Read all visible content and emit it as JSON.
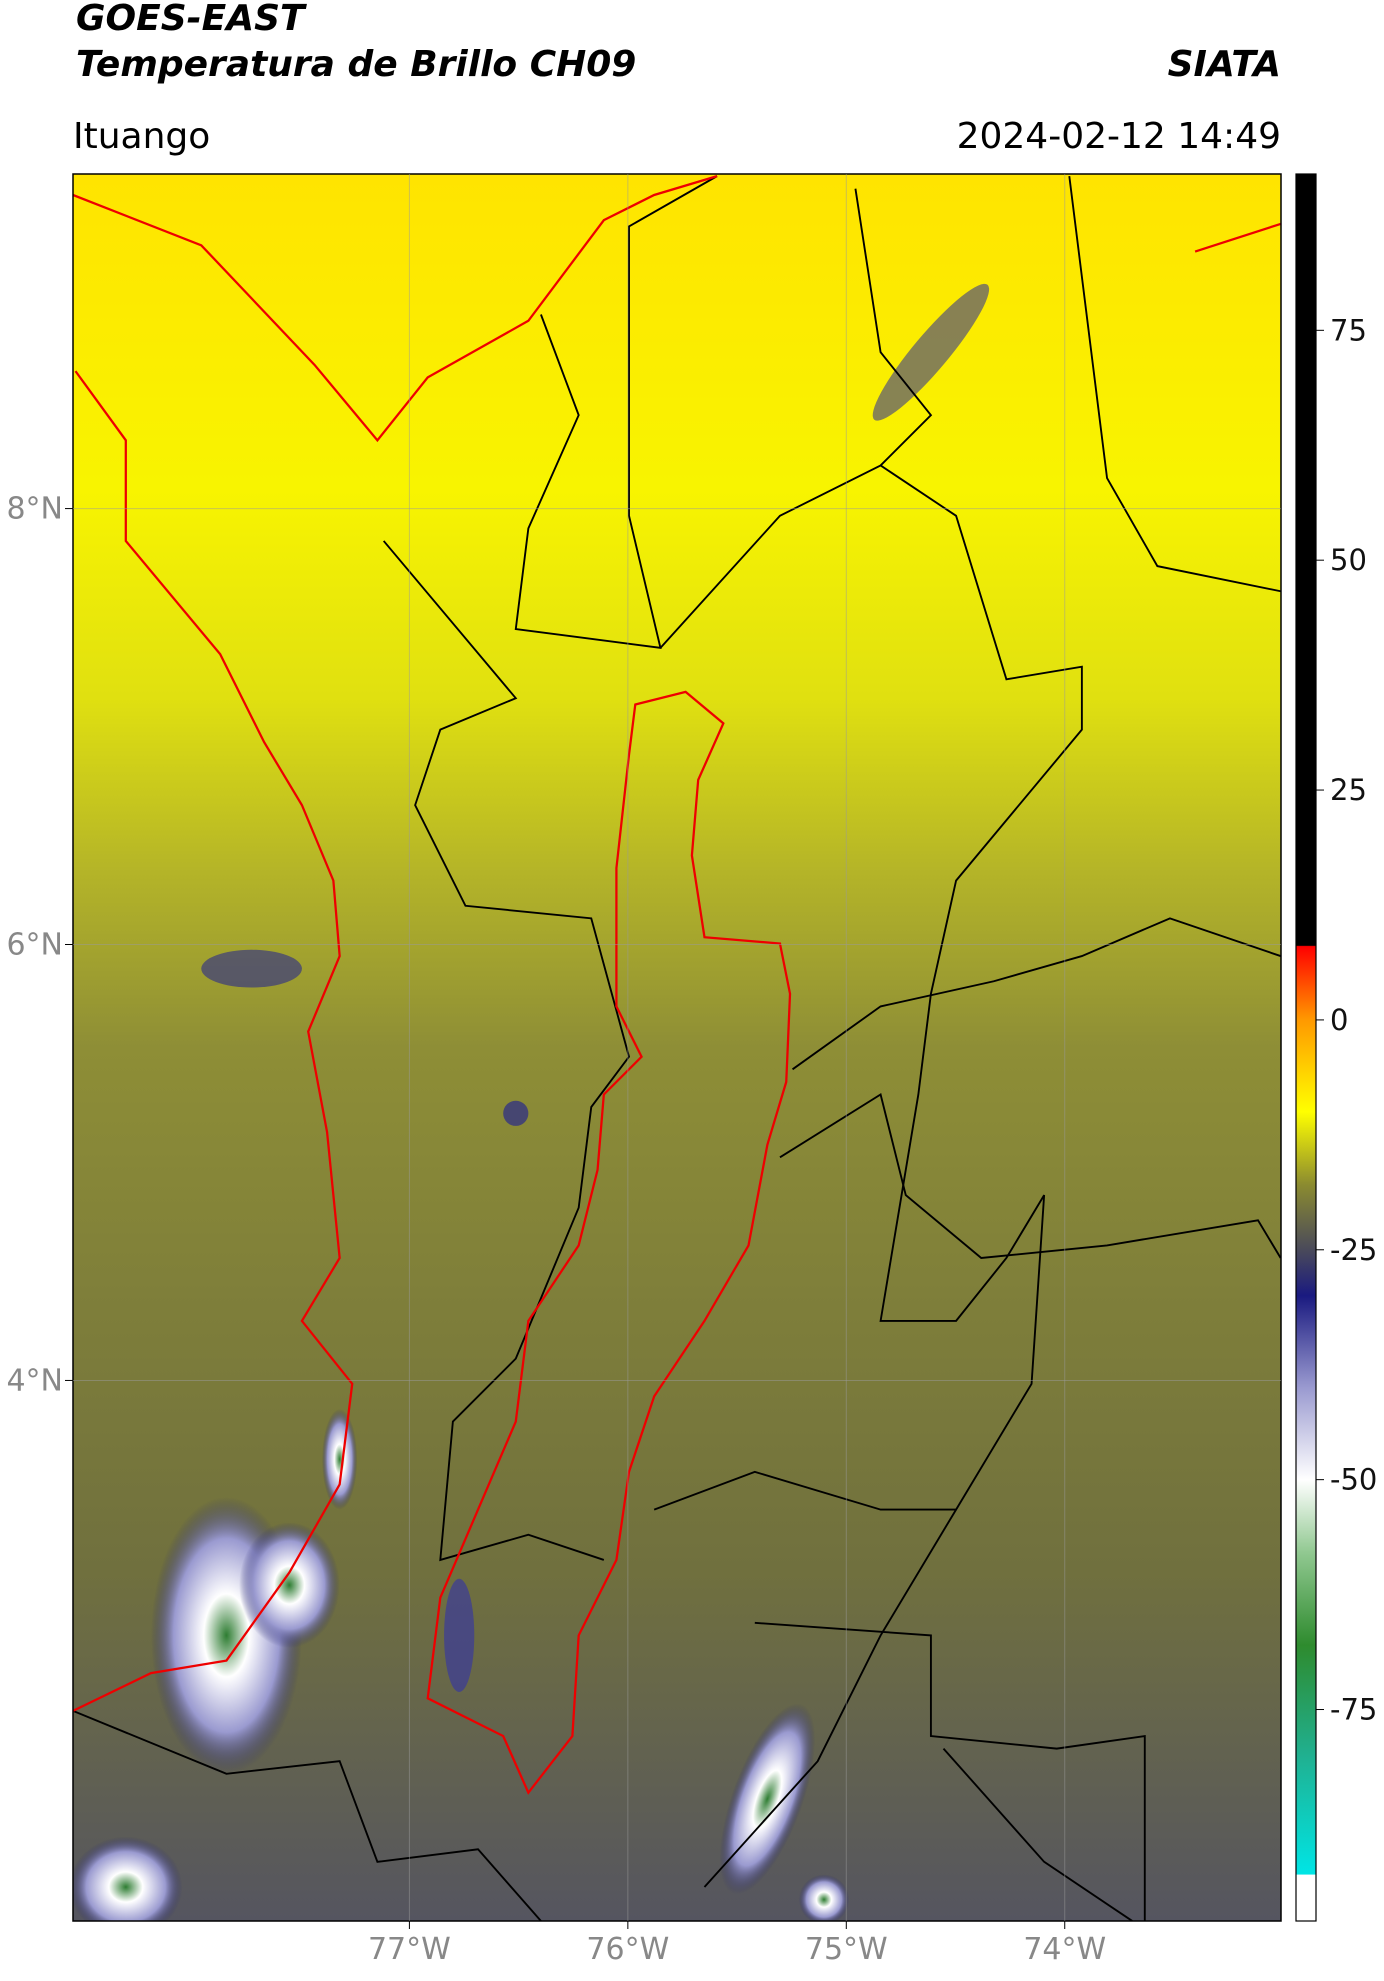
{
  "header": {
    "title": "GOES-EAST",
    "subtitle": "Temperatura de Brillo CH09",
    "organization": "SIATA",
    "region": "Ituango",
    "datetime": "2024-02-12 14:49"
  },
  "map": {
    "lon_range": [
      -78.54,
      -73.01
    ],
    "lat_range": [
      1.52,
      9.535
    ],
    "lon_ticks": [
      {
        "value": -77,
        "label": "77°W"
      },
      {
        "value": -76,
        "label": "76°W"
      },
      {
        "value": -75,
        "label": "75°W"
      },
      {
        "value": -74,
        "label": "74°W"
      }
    ],
    "lat_ticks": [
      {
        "value": 8,
        "label": "8°N"
      },
      {
        "value": 6,
        "label": "6°N"
      },
      {
        "value": 4,
        "label": "4°N"
      }
    ]
  },
  "colorbar": {
    "range": [
      -98,
      92
    ],
    "ticks": [
      75,
      50,
      25,
      0,
      -25,
      -50,
      -75
    ],
    "stops": [
      {
        "value": -98,
        "color": "#ffffff"
      },
      {
        "value": -93,
        "color": "#ffffff"
      },
      {
        "value": -92.9,
        "color": "#00e5e5"
      },
      {
        "value": -80,
        "color": "#20b090"
      },
      {
        "value": -68,
        "color": "#2e8b2e"
      },
      {
        "value": -58,
        "color": "#90c890"
      },
      {
        "value": -50,
        "color": "#ffffff"
      },
      {
        "value": -40,
        "color": "#9a9ad0"
      },
      {
        "value": -30,
        "color": "#1a1a80"
      },
      {
        "value": -25,
        "color": "#4a4a5a"
      },
      {
        "value": -18,
        "color": "#8a8a30"
      },
      {
        "value": -10,
        "color": "#ffff00"
      },
      {
        "value": 0,
        "color": "#ff9900"
      },
      {
        "value": 8,
        "color": "#ff0000"
      },
      {
        "value": 8.1,
        "color": "#000000"
      },
      {
        "value": 92,
        "color": "#000000"
      }
    ]
  }
}
